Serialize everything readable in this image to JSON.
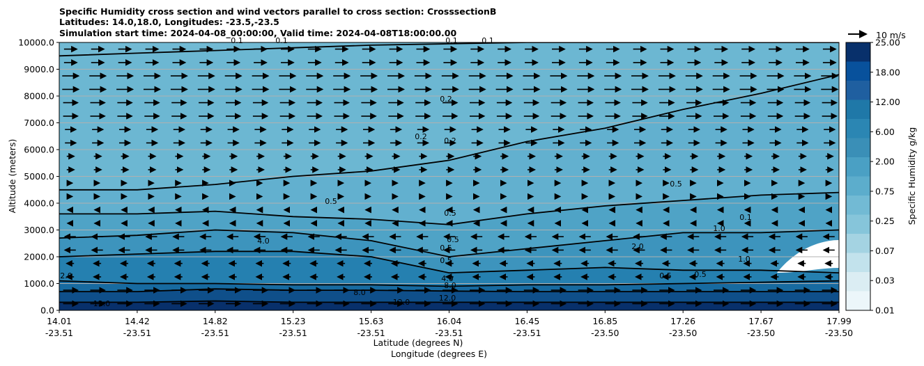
{
  "header": {
    "title_line1": "Specific Humidity cross section and wind vectors parallel to cross section: CrosssectionB",
    "title_line2": "Latitudes: 14.0,18.0, Longitudes: -23.5,-23.5",
    "title_line3": "Simulation start time: 2024-04-08_00:00:00, Valid time: 2024-04-08T18:00:00.00"
  },
  "colors": {
    "band_colors": [
      "#08306b",
      "#08519c",
      "#2171b5",
      "#1f78a8",
      "#3a8fb7",
      "#4aa0c4",
      "#5cadcc",
      "#72bad4",
      "#86c5da",
      "#a4d3e2",
      "#c2e2ec",
      "#ffffff"
    ],
    "contour": "#000000",
    "grid": "#b0b0b0"
  },
  "chart_data": {
    "type": "heatmap",
    "title": "Specific Humidity cross section and wind vectors parallel to cross section: CrosssectionB",
    "ylabel": "Altitude (meters)",
    "xlabel_lat": "Latitude (degrees N)",
    "xlabel_lon": "Longitude (degrees E)",
    "ylim": [
      0,
      10000
    ],
    "y_ticks": [
      "0.0",
      "1000.0",
      "2000.0",
      "3000.0",
      "4000.0",
      "5000.0",
      "6000.0",
      "7000.0",
      "8000.0",
      "9000.0",
      "10000.0"
    ],
    "x_lat_ticks": [
      "14.01",
      "14.42",
      "14.82",
      "15.23",
      "15.63",
      "16.04",
      "16.45",
      "16.85",
      "17.26",
      "17.67",
      "17.99"
    ],
    "x_lon_ticks": [
      "-23.51",
      "-23.51",
      "-23.51",
      "-23.51",
      "-23.51",
      "-23.51",
      "-23.51",
      "-23.50",
      "-23.50",
      "-23.50",
      "-23.50"
    ],
    "colorbar": {
      "label": "Specific Humidity g/kg",
      "ticks": [
        "25.00",
        "18.00",
        "12.00",
        "6.00",
        "2.00",
        "0.75",
        "0.25",
        "0.07",
        "0.03",
        "0.01"
      ],
      "levels": [
        25,
        18,
        12,
        6,
        2,
        0.75,
        0.25,
        0.07,
        0.03,
        0.01
      ]
    },
    "wind_key": {
      "label": "10 m/s",
      "speed": 10
    },
    "contour_labels": [
      "0.1",
      "0.1",
      "0.1",
      "0.1",
      "0.2",
      "0.2",
      "0.2",
      "0.5",
      "0.5",
      "0.5",
      "0.5",
      "0.5",
      "0.5",
      "1.0",
      "1.0",
      "2.0",
      "2.0",
      "4.0",
      "4.0",
      "8.0",
      "8.0",
      "12.0",
      "12.0",
      "12.0",
      "0.1",
      "0.5",
      "0.5"
    ],
    "profile_lat_deg": [
      14.01,
      14.42,
      14.82,
      15.23,
      15.63,
      16.04,
      16.45,
      16.85,
      17.26,
      17.67,
      17.99
    ],
    "humidity_layers_altitude_m": [
      {
        "level": "12.0",
        "altitude": [
          300,
          300,
          350,
          300,
          300,
          300,
          300,
          300,
          300,
          300,
          300
        ]
      },
      {
        "level": "8.0",
        "altitude": [
          700,
          700,
          800,
          750,
          750,
          720,
          700,
          700,
          700,
          700,
          700
        ]
      },
      {
        "level": "4.0",
        "altitude": [
          1100,
          1000,
          1000,
          950,
          950,
          900,
          950,
          950,
          1000,
          1050,
          1100
        ]
      },
      {
        "level": "2.0",
        "altitude": [
          2000,
          2100,
          2200,
          2200,
          2000,
          1400,
          1500,
          1600,
          1500,
          1500,
          1400
        ]
      },
      {
        "level": "1.0",
        "altitude": [
          2700,
          2800,
          3000,
          2900,
          2600,
          2000,
          2300,
          2600,
          2900,
          2900,
          3000
        ]
      },
      {
        "level": "0.5",
        "altitude": [
          3600,
          3600,
          3700,
          3500,
          3400,
          3200,
          3600,
          3900,
          4100,
          4300,
          4400
        ]
      },
      {
        "level": "0.2",
        "altitude": [
          4500,
          4500,
          4700,
          5000,
          5200,
          5600,
          6300,
          6800,
          7500,
          8100,
          8800
        ]
      },
      {
        "level": "0.1",
        "altitude": [
          9500,
          9600,
          9700,
          9800,
          9900,
          9950,
          10000,
          10000,
          10000,
          10000,
          10000
        ]
      }
    ],
    "wind_speed_ms_by_altitude": [
      {
        "altitude": 500,
        "speed": 8
      },
      {
        "altitude": 1500,
        "speed": -4
      },
      {
        "altitude": 2500,
        "speed": -6
      },
      {
        "altitude": 3500,
        "speed": -3
      },
      {
        "altitude": 4500,
        "speed": 2
      },
      {
        "altitude": 5500,
        "speed": 4
      },
      {
        "altitude": 6500,
        "speed": 6
      },
      {
        "altitude": 7500,
        "speed": 8
      },
      {
        "altitude": 8500,
        "speed": 9
      },
      {
        "altitude": 9500,
        "speed": 7
      }
    ]
  }
}
